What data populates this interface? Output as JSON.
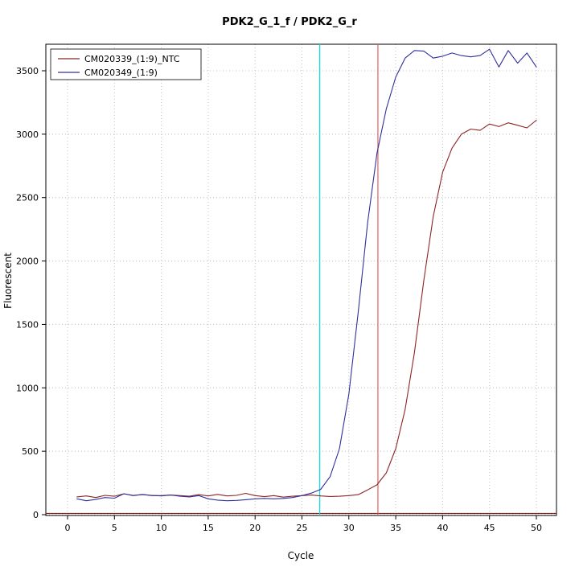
{
  "chart_data": {
    "type": "line",
    "title": "PDK2_G_1_f / PDK2_G_r",
    "xlabel": "Cycle",
    "ylabel": "Fluorescent",
    "xlim": [
      -1,
      51
    ],
    "ylim": [
      -60,
      3700
    ],
    "x_ticks": [
      0,
      5,
      10,
      15,
      20,
      25,
      30,
      35,
      40,
      45,
      50
    ],
    "y_ticks": [
      0,
      500,
      1000,
      1500,
      2000,
      2500,
      3000,
      3500
    ],
    "grid": true,
    "legend_position": "top-left",
    "x": [
      1,
      2,
      3,
      4,
      5,
      6,
      7,
      8,
      9,
      10,
      11,
      12,
      13,
      14,
      15,
      16,
      17,
      18,
      19,
      20,
      21,
      22,
      23,
      24,
      25,
      26,
      27,
      28,
      29,
      30,
      31,
      32,
      33,
      34,
      35,
      36,
      37,
      38,
      39,
      40,
      41,
      42,
      43,
      44,
      45,
      46,
      47,
      48,
      49,
      50
    ],
    "series": [
      {
        "name": "CM020339_(1:9)_NTC",
        "color": "#8b2525",
        "values": [
          140,
          148,
          135,
          152,
          145,
          165,
          152,
          158,
          152,
          148,
          155,
          150,
          145,
          158,
          148,
          160,
          148,
          152,
          168,
          150,
          142,
          150,
          138,
          145,
          150,
          155,
          148,
          143,
          145,
          150,
          158,
          195,
          235,
          330,
          520,
          830,
          1280,
          1850,
          2350,
          2700,
          2890,
          3000,
          3040,
          3030,
          3080,
          3060,
          3090,
          3070,
          3050,
          3110
        ]
      },
      {
        "name": "CM020349_(1:9)",
        "color": "#30309c",
        "values": [
          125,
          110,
          120,
          135,
          130,
          165,
          150,
          160,
          150,
          150,
          155,
          145,
          140,
          150,
          125,
          115,
          110,
          112,
          118,
          125,
          128,
          125,
          128,
          135,
          150,
          170,
          200,
          300,
          520,
          950,
          1600,
          2300,
          2850,
          3200,
          3450,
          3600,
          3660,
          3655,
          3600,
          3615,
          3640,
          3620,
          3610,
          3620,
          3670,
          3530,
          3660,
          3560,
          3640,
          3530
        ]
      }
    ],
    "vlines": [
      {
        "x": 26.9,
        "color": "#00dde6",
        "name": "ct-line-cyan"
      },
      {
        "x": 33.1,
        "color": "#e06060",
        "name": "ct-line-red"
      }
    ],
    "hlines": [
      {
        "y": 10,
        "color": "#8b1a1a",
        "name": "threshold-line"
      }
    ]
  }
}
